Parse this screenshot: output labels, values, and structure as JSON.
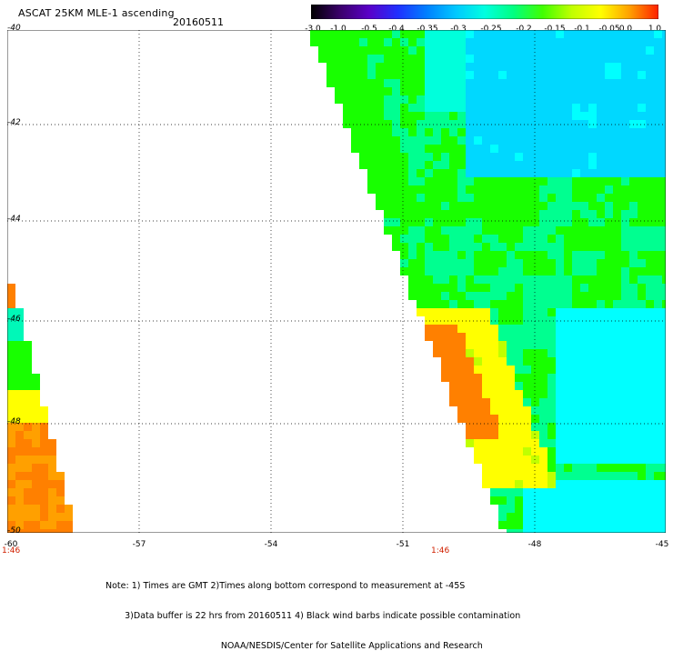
{
  "header": {
    "title": "ASCAT 25KM MLE-1 ascending",
    "date": "20160511"
  },
  "colorbar": {
    "labels": [
      "-3.0",
      "-1.0",
      "-0.5",
      "-0.4",
      "-0.35",
      "-0.3",
      "-0.25",
      "-0.2",
      "-0.15",
      "-0.1",
      "-0.05",
      "0.0",
      "1.0"
    ],
    "colors": [
      "#000000",
      "#3a006a",
      "#5a00c8",
      "#2030ff",
      "#0080ff",
      "#00c8ff",
      "#00ffe0",
      "#00ff80",
      "#40ff00",
      "#c0ff00",
      "#ffff00",
      "#ffa000",
      "#ff2000"
    ]
  },
  "axes": {
    "lat_labels": [
      "-40",
      "-42",
      "-44",
      "-46",
      "-48",
      "-50"
    ],
    "lon_labels": [
      "-60",
      "-57",
      "-54",
      "-51",
      "-48",
      "-45"
    ],
    "time_labels": [
      "1:46",
      "1:46"
    ]
  },
  "map": {
    "lat_range": [
      -50,
      -40
    ],
    "lon_range": [
      -60,
      -45
    ],
    "gridlines": true,
    "palette": {
      "cyan": "#00ffff",
      "aqua": "#00ffdc",
      "teal": "#00f8b8",
      "mint": "#00ff90",
      "green": "#18ff00",
      "lime": "#78ff00",
      "yellowgreen": "#c0ff00",
      "yellow": "#ffff00",
      "orange": "#ffa000",
      "darkorange": "#ff8000",
      "skyblue": "#00d8ff"
    }
  },
  "notes": [
    "Note: 1) Times are GMT 2)Times along bottom correspond to measurement at -45S",
    "       3)Data buffer is 22 hrs from 20160511 4) Black wind barbs indicate possible contamination",
    "                                          NOAA/NESDIS/Center for Satellite Applications and Research"
  ]
}
